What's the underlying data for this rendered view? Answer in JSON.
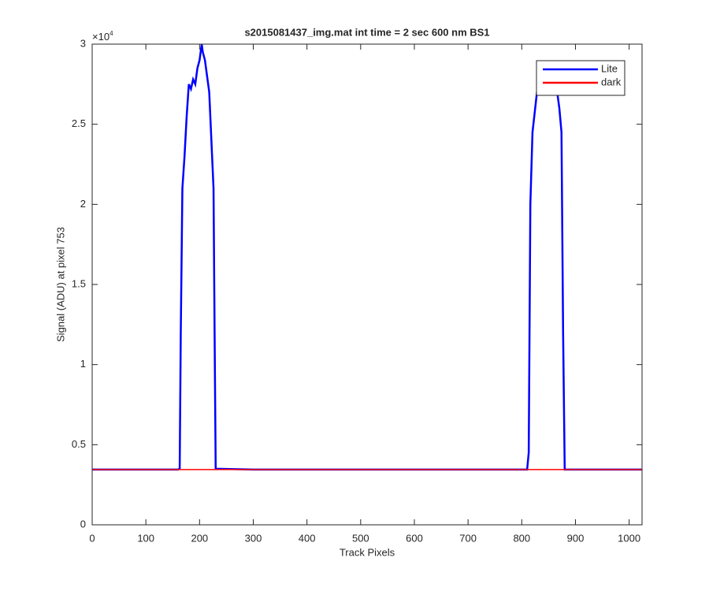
{
  "chart_data": {
    "type": "line",
    "title": "s2015081437_img.mat int time = 2 sec  600 nm BS1",
    "xlabel": "Track Pixels",
    "ylabel": "Signal (ADU) at pixel 753",
    "y_multiplier": {
      "base": "×10",
      "exponent": "4"
    },
    "x": [
      0,
      160,
      163,
      165,
      168,
      172,
      176,
      180,
      184,
      188,
      192,
      196,
      200,
      204,
      206,
      210,
      214,
      218,
      222,
      226,
      228,
      230,
      300,
      500,
      700,
      810,
      813,
      816,
      820,
      825,
      830,
      840,
      850,
      860,
      866,
      870,
      874,
      877,
      880,
      1024
    ],
    "series": [
      {
        "name": "Lite",
        "color": "#0000ff",
        "values": [
          3450,
          3450,
          3500,
          12000,
          21000,
          23000,
          25500,
          27500,
          27200,
          27800,
          27500,
          28500,
          29000,
          30000,
          29500,
          29000,
          28000,
          27000,
          24000,
          21000,
          12000,
          3500,
          3450,
          3450,
          3450,
          3450,
          4500,
          20000,
          24500,
          26000,
          27500,
          28000,
          28200,
          27800,
          27000,
          26000,
          24500,
          12000,
          3450,
          3450
        ]
      },
      {
        "name": "dark",
        "color": "#ff0000",
        "values": [
          3450,
          3450,
          3450,
          3450,
          3450,
          3450,
          3450,
          3450,
          3450,
          3450,
          3450,
          3450,
          3450,
          3450,
          3450,
          3450,
          3450,
          3450,
          3450,
          3450,
          3450,
          3450,
          3450,
          3450,
          3450,
          3450,
          3450,
          3450,
          3450,
          3450,
          3450,
          3450,
          3450,
          3450,
          3450,
          3450,
          3450,
          3450,
          3450,
          3450
        ]
      }
    ],
    "xlim": [
      0,
      1024
    ],
    "ylim": [
      0,
      30000
    ],
    "xticks": [
      0,
      100,
      200,
      300,
      400,
      500,
      600,
      700,
      800,
      900,
      1000
    ],
    "yticks": [
      0,
      {
        "value": 5000,
        "label": "0.5"
      },
      {
        "value": 10000,
        "label": "1"
      },
      {
        "value": 15000,
        "label": "1.5"
      },
      {
        "value": 20000,
        "label": "2"
      },
      {
        "value": 25000,
        "label": "2.5"
      },
      {
        "value": 30000,
        "label": "3"
      }
    ],
    "legend": "northeast",
    "grid": false
  }
}
